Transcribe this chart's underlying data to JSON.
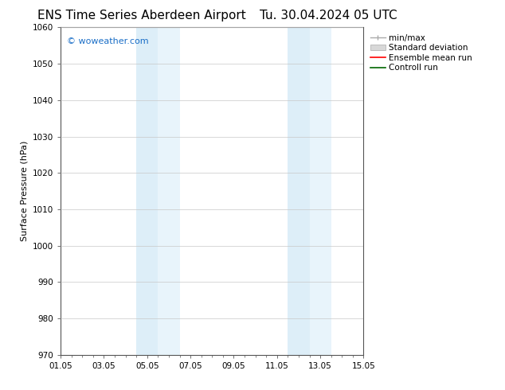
{
  "title_left": "ENS Time Series Aberdeen Airport",
  "title_right": "Tu. 30.04.2024 05 UTC",
  "ylabel": "Surface Pressure (hPa)",
  "ylim": [
    970,
    1060
  ],
  "yticks": [
    970,
    980,
    990,
    1000,
    1010,
    1020,
    1030,
    1040,
    1050,
    1060
  ],
  "xtick_labels": [
    "01.05",
    "03.05",
    "05.05",
    "07.05",
    "09.05",
    "11.05",
    "13.05",
    "15.05"
  ],
  "xtick_positions": [
    0,
    2,
    4,
    6,
    8,
    10,
    12,
    14
  ],
  "xlim": [
    0,
    14
  ],
  "shaded_regions": [
    {
      "x_start": 3.5,
      "x_end": 4.5,
      "color": "#ddeef8"
    },
    {
      "x_start": 4.5,
      "x_end": 5.5,
      "color": "#e8f4fb"
    },
    {
      "x_start": 10.5,
      "x_end": 11.5,
      "color": "#ddeef8"
    },
    {
      "x_start": 11.5,
      "x_end": 12.5,
      "color": "#e8f4fb"
    }
  ],
  "background_color": "#ffffff",
  "plot_bg_color": "#ffffff",
  "grid_color": "#c8c8c8",
  "watermark_text": "© woweather.com",
  "watermark_color": "#1a6ec7",
  "legend_items": [
    {
      "label": "min/max",
      "color": "#aaaaaa",
      "style": "line_with_caps"
    },
    {
      "label": "Standard deviation",
      "color": "#cccccc",
      "style": "filled_box"
    },
    {
      "label": "Ensemble mean run",
      "color": "#ff0000",
      "style": "line"
    },
    {
      "label": "Controll run",
      "color": "#008000",
      "style": "line"
    }
  ],
  "title_fontsize": 11,
  "axis_label_fontsize": 8,
  "tick_fontsize": 7.5,
  "legend_fontsize": 7.5,
  "watermark_fontsize": 8
}
